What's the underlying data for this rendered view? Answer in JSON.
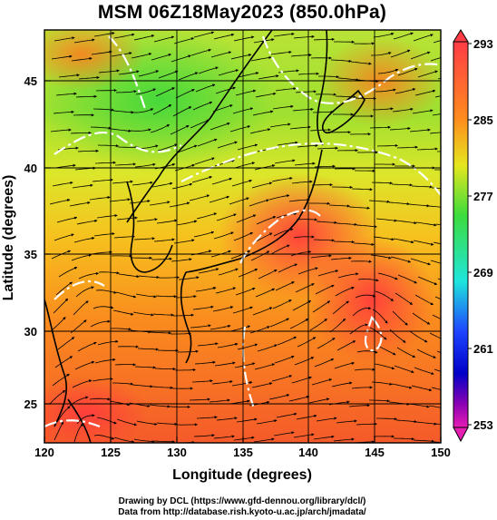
{
  "title": "MSM 06Z18May2023 (850.0hPa)",
  "axes": {
    "x_label": "Longitude (degrees)",
    "y_label": "Latitude  (degrees)",
    "x_ticks": [
      "120",
      "125",
      "130",
      "135",
      "140",
      "145",
      "150"
    ],
    "y_ticks": [
      "25",
      "30",
      "35",
      "40",
      "45"
    ]
  },
  "colorbar": {
    "ticks": [
      "293",
      "285",
      "277",
      "269",
      "261",
      "253"
    ],
    "colors": [
      "#ff3c46",
      "#ff8c1e",
      "#e6e61e",
      "#3cdc3c",
      "#1ee6dc",
      "#1e46ff",
      "#0000c8",
      "#8c00b4",
      "#e61eb4"
    ]
  },
  "credits": {
    "line1": "Drawing by DCL (https://www.gfd-dennou.org/library/dcl/)",
    "line2": "Data from http://database.rish.kyoto-u.ac.jp/arch/jmadata/"
  }
}
